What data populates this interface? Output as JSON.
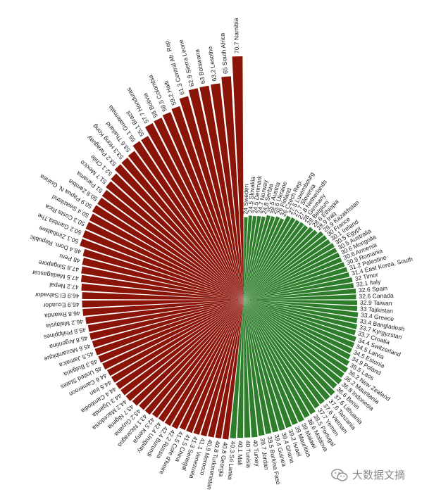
{
  "chart_data": {
    "type": "bar",
    "layout": "radial",
    "title": "",
    "colors": {
      "high": "#8b1409",
      "low": "#2d7d2a"
    },
    "threshold": 40.5,
    "ylim": [
      0,
      70.7
    ],
    "categories": [
      "Namibia",
      "South Africa",
      "Lesotho",
      "Botswana",
      "Sierra Leone",
      "Central Afr. Rep.",
      "Haiti",
      "Colombia",
      "Bolivia",
      "Honduras",
      "Brazil",
      "Guatemala",
      "Thailand",
      "Hong Kong",
      "Paraguay",
      "Chile",
      "Mexico",
      "Panama",
      "Zambia",
      "Papua N. Guinea",
      "Swaziland",
      "Costa Rica",
      "Gambia,The",
      "Zimbabwe",
      "Dom. Republic",
      "Peru",
      "Singapore",
      "Madagascar",
      "Nepal",
      "El Salvador",
      "Ecuador",
      "Rwanda",
      "Malaysia",
      "Philippines",
      "Argentina",
      "Mozambique",
      "Jamaica",
      "Bulgaria",
      "United States",
      "Cameroon",
      "Iran",
      "Cambodia",
      "Uganda",
      "Macedonia",
      "Nigeria",
      "Guyana",
      "Nicaragua",
      "Kenya",
      "Uruguay",
      "Burundi",
      "Russia",
      "Cote d'Ivoire",
      "China",
      "Senegal",
      "Venezuela",
      "Morocco",
      "Turkmenistan",
      "Georgia",
      "Sri Lanka",
      "Mali",
      "Tunisia",
      "Turkey",
      "Jordan",
      "Burkina Faso",
      "Guinea",
      "Ghana",
      "Israel",
      "Mauritius",
      "Malawi",
      "Moldova",
      "Portugal",
      "Yemen",
      "Vietnam",
      "Tanzania",
      "Lithuania",
      "Benin",
      "Indonesia",
      "Mauritania",
      "New Zealand",
      "Laos",
      "Poland",
      "Estonia",
      "Latvia",
      "Switzerland",
      "Croatia",
      "Kyrgyzstan",
      "Bangladesh",
      "Greece",
      "Tajikistan",
      "Taiwan",
      "Canada",
      "Spain",
      "Italy",
      "Timor",
      "East Korea, South",
      "Palestine",
      "Romania",
      "Armenia",
      "Mongolia",
      "Australia",
      "Egypt",
      "Ireland",
      "France",
      "Kazakhstan",
      "Iraq",
      "Ethiopia",
      "Belgium",
      "Germany",
      "Netherlands",
      "Slovenia",
      "Luxembourg",
      "Czech Rep.",
      "Finland",
      "Ukraine",
      "Austria",
      "Serbia",
      "Norway",
      "Denmark",
      "Slovakia",
      "Sweden"
    ],
    "values": [
      70.7,
      65,
      63.2,
      63,
      62.9,
      61.3,
      59.2,
      58.5,
      58,
      57.7,
      55.1,
      55.1,
      53.6,
      53.3,
      53.2,
      52.1,
      51.7,
      51,
      50.8,
      50.9,
      50.4,
      50.3,
      50.2,
      50.1,
      48.4,
      48,
      47.8,
      47.5,
      47.2,
      46.9,
      46.9,
      46.8,
      46.2,
      45.8,
      45.8,
      45.6,
      45.5,
      45.3,
      45,
      44.6,
      44.5,
      44.4,
      44.3,
      44.2,
      43.7,
      43.2,
      43.1,
      42.5,
      42.4,
      42.4,
      42.2,
      41.5,
      41.5,
      41.3,
      41.1,
      40.9,
      40.8,
      40.8,
      40.3,
      40.1,
      40,
      40,
      39.7,
      39.5,
      39.4,
      39.4,
      39.2,
      39,
      39,
      38.6,
      38.5,
      37.7,
      37.6,
      37.6,
      37.6,
      36.6,
      36.8,
      36.2,
      36.2,
      35.5,
      34.9,
      34.5,
      34.5,
      34.4,
      33.7,
      33.7,
      33.4,
      33.4,
      33,
      32.9,
      32.6,
      32.6,
      32.1,
      32,
      31.4,
      31.2,
      30.9,
      30.6,
      30.6,
      30.5,
      30.5,
      30.1,
      30,
      29.9,
      28.9,
      28.6,
      28,
      28,
      27.8,
      27.7,
      27.5,
      26,
      26,
      25.6,
      25.5,
      24.8,
      24.7,
      24.5,
      24.5,
      24
    ]
  },
  "labels": [
    "70.7 Namibia",
    "65 South Africa",
    "63.2 Lesotho",
    "63 Botswana",
    "62.9 Sierra Leone",
    "61.3 Central Afr. Rep.",
    "59.2 Haiti",
    "58.5 Colombia",
    "58 Bolivia",
    "57.7 Honduras",
    "55.1 Brazil",
    "55.1 Guatemala",
    "53.6 Thailand",
    "53.3 Hong Kong",
    "53.2 Paraguay",
    "52.1 Chile",
    "51.7 Mexico",
    "51 Panama",
    "50.8 Zambia",
    "50.9 Papua N. Guinea",
    "50.4 Swaziland",
    "50.3 Costa Rica",
    "50.2 Gambia,The",
    "50.1 Zimbabwe",
    "48.4 Dom. Republic",
    "48 Peru",
    "47.8 Singapore",
    "47.5 Madagascar",
    "47.2 Nepal",
    "46.9 El Salvador",
    "46.9 Ecuador",
    "46.8 Rwanda",
    "46.2 Malaysia",
    "45.8 Philippines",
    "45.8 Argentina",
    "45.6 Mozambique",
    "45.5 Jamaica",
    "45.3 Bulgaria",
    "45 United States",
    "44.6 Cameroon",
    "44.5 Iran",
    "44.4 Cambodia",
    "44.3 Uganda",
    "44.2 Macedonia",
    "43.7 Nigeria",
    "43.2 Guyana",
    "43.1 Nicaragua",
    "42.5 Kenya",
    "42.4 Uruguay",
    "42.4 Burundi",
    "42.2 Russia",
    "41.5 Cote d'Ivoire",
    "41.5 China",
    "41.3 Senegal",
    "41.1 Venezuela",
    "40.9 Morocco",
    "40.8 Turkmenistan",
    "40.8 Georgia",
    "40.3 Sri Lanka",
    "40.1 Mali",
    "40 Tunisia",
    "40 Turkey",
    "39.7 Jordan",
    "39.5 Burkina Faso",
    "39.4 Guinea",
    "39.4 Ghana",
    "39.2 Israel",
    "39 Mauritius",
    "39 Malawi",
    "38.6 Moldova",
    "38.5 Portugal",
    "37.7 Yemen",
    "37.6 Vietnam",
    "37.6 Tanzania",
    "37.6 Lithuania",
    "36.6 Benin",
    "36.8 Indonesia",
    "36.2 Mauritania",
    "36.2 New Zealand",
    "35.5 Laos",
    "34.9 Poland",
    "34.5 Estonia",
    "34.5 Latvia",
    "34.4 Switzerland",
    "33.7 Croatia",
    "33.7 Kyrgyzstan",
    "33.4 Bangladesh",
    "33.4 Greece",
    "33 Tajikistan",
    "32.9 Taiwan",
    "32.6 Canada",
    "32.6 Spain",
    "32.1 Italy",
    "32 Timor",
    "31.4 East Korea, South",
    "31.2 Palestine",
    "30.9 Romania",
    "30.6 Armenia",
    "30.6 Mongolia",
    "30.5 Australia",
    "30.5 Egypt",
    "30.1 Ireland",
    "30 France",
    "29.9 Kazakhstan",
    "28.9 Iraq",
    "28.6 Ethiopia",
    "28 Belgium",
    "28 Germany",
    "27.8 Netherlands",
    "27.7 Slovenia",
    "27.5 Luxembourg",
    "26 Czech Rep.",
    "26 Finland",
    "25.6 Ukraine",
    "25.5 Austria",
    "24.8 Serbia",
    "24.7 Norway",
    "24.5 Denmark",
    "24.5 Slovakia",
    "24 Sweden"
  ],
  "watermark": {
    "text": "大数据文摘",
    "icon": "wechat-icon"
  }
}
